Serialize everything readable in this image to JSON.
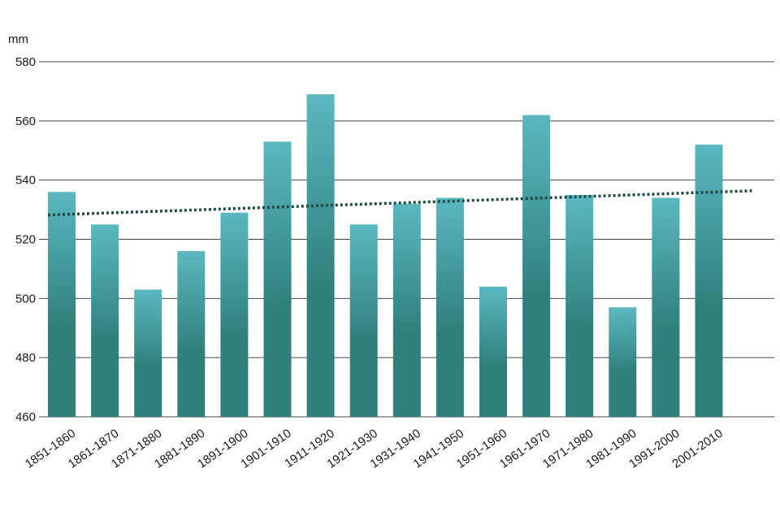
{
  "chart_data": {
    "type": "bar",
    "unit_label": "mm",
    "categories": [
      "1851-1860",
      "1861-1870",
      "1871-1880",
      "1881-1890",
      "1891-1900",
      "1901-1910",
      "1911-1920",
      "1921-1930",
      "1931-1940",
      "1941-1950",
      "1951-1960",
      "1961-1970",
      "1971-1980",
      "1981-1990",
      "1991-2000",
      "2001-2010"
    ],
    "values": [
      536,
      525,
      503,
      516,
      529,
      553,
      569,
      525,
      532,
      534,
      504,
      562,
      535,
      497,
      534,
      552
    ],
    "ylim": [
      460,
      580
    ],
    "yticks": [
      460,
      480,
      500,
      520,
      540,
      560,
      580
    ],
    "trendline": {
      "start": 528.2,
      "end": 536.4,
      "style": "dotted"
    },
    "grid": true,
    "colors": {
      "bar_top": "#5bb8c0",
      "bar_bottom": "#2f807c",
      "trend": "#1d4a46",
      "grid": "#444444"
    }
  }
}
